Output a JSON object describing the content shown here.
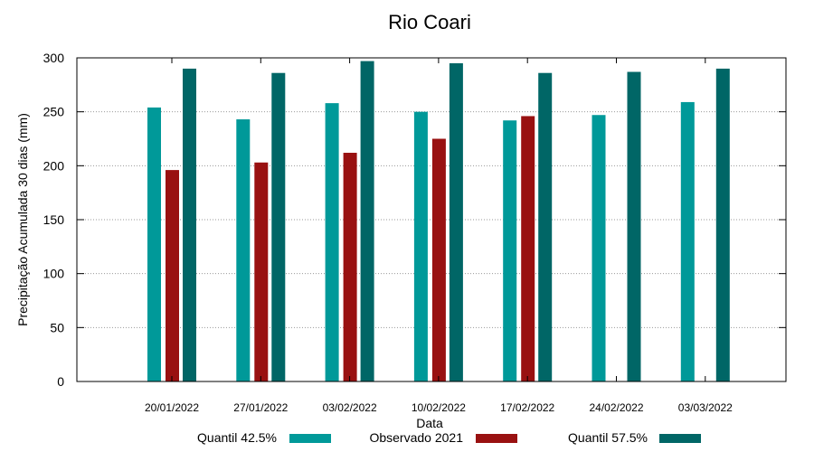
{
  "chart_data": {
    "type": "bar",
    "title": "Rio Coari",
    "xlabel": "Data",
    "ylabel": "Precipitação Acumulada 30 dias (mm)",
    "ylim": [
      0,
      300
    ],
    "yticks": [
      0,
      50,
      100,
      150,
      200,
      250,
      300
    ],
    "grid": true,
    "legend_position": "bottom",
    "categories": [
      "20/01/2022",
      "27/01/2022",
      "03/02/2022",
      "10/02/2022",
      "17/02/2022",
      "24/02/2022",
      "03/03/2022"
    ],
    "series": [
      {
        "name": "Quantil 42.5%",
        "color": "#009999",
        "values": [
          254,
          243,
          258,
          250,
          242,
          247,
          259
        ]
      },
      {
        "name": "Observado 2021",
        "color": "#991111",
        "values": [
          196,
          203,
          212,
          225,
          246,
          null,
          null
        ]
      },
      {
        "name": "Quantil 57.5%",
        "color": "#006666",
        "values": [
          290,
          286,
          297,
          295,
          286,
          287,
          290
        ]
      }
    ]
  }
}
